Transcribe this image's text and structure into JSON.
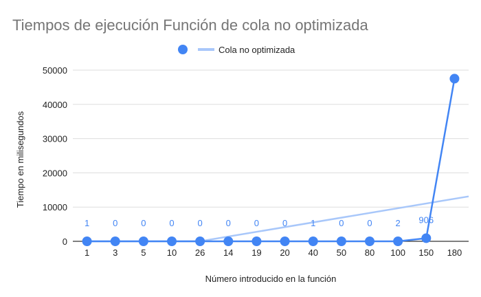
{
  "chart_data": {
    "type": "line",
    "title": "Tiempos de ejecución Función de cola no optimizada",
    "xlabel": "Número introducido en la función",
    "ylabel": "Tiempo en milisegundos",
    "categories": [
      "1",
      "3",
      "5",
      "10",
      "26",
      "14",
      "19",
      "20",
      "40",
      "50",
      "80",
      "100",
      "150",
      "180"
    ],
    "series": [
      {
        "name": "Cola no optimizada",
        "values": [
          1,
          0,
          0,
          0,
          0,
          0,
          0,
          0,
          1,
          0,
          0,
          2,
          906,
          47500
        ],
        "data_labels": [
          "1",
          "0",
          "0",
          "0",
          "0",
          "0",
          "0",
          "0",
          "1",
          "0",
          "0",
          "2",
          "906",
          ""
        ]
      }
    ],
    "yticks": [
      0,
      10000,
      20000,
      30000,
      40000,
      50000
    ],
    "ylim": [
      0,
      52000
    ],
    "grid": true,
    "legend_position": "top",
    "trendline": true,
    "colors": {
      "series": "#4285f4",
      "trendline": "#a8c7fa",
      "grid": "#dddddd",
      "baseline": "#333333"
    }
  }
}
